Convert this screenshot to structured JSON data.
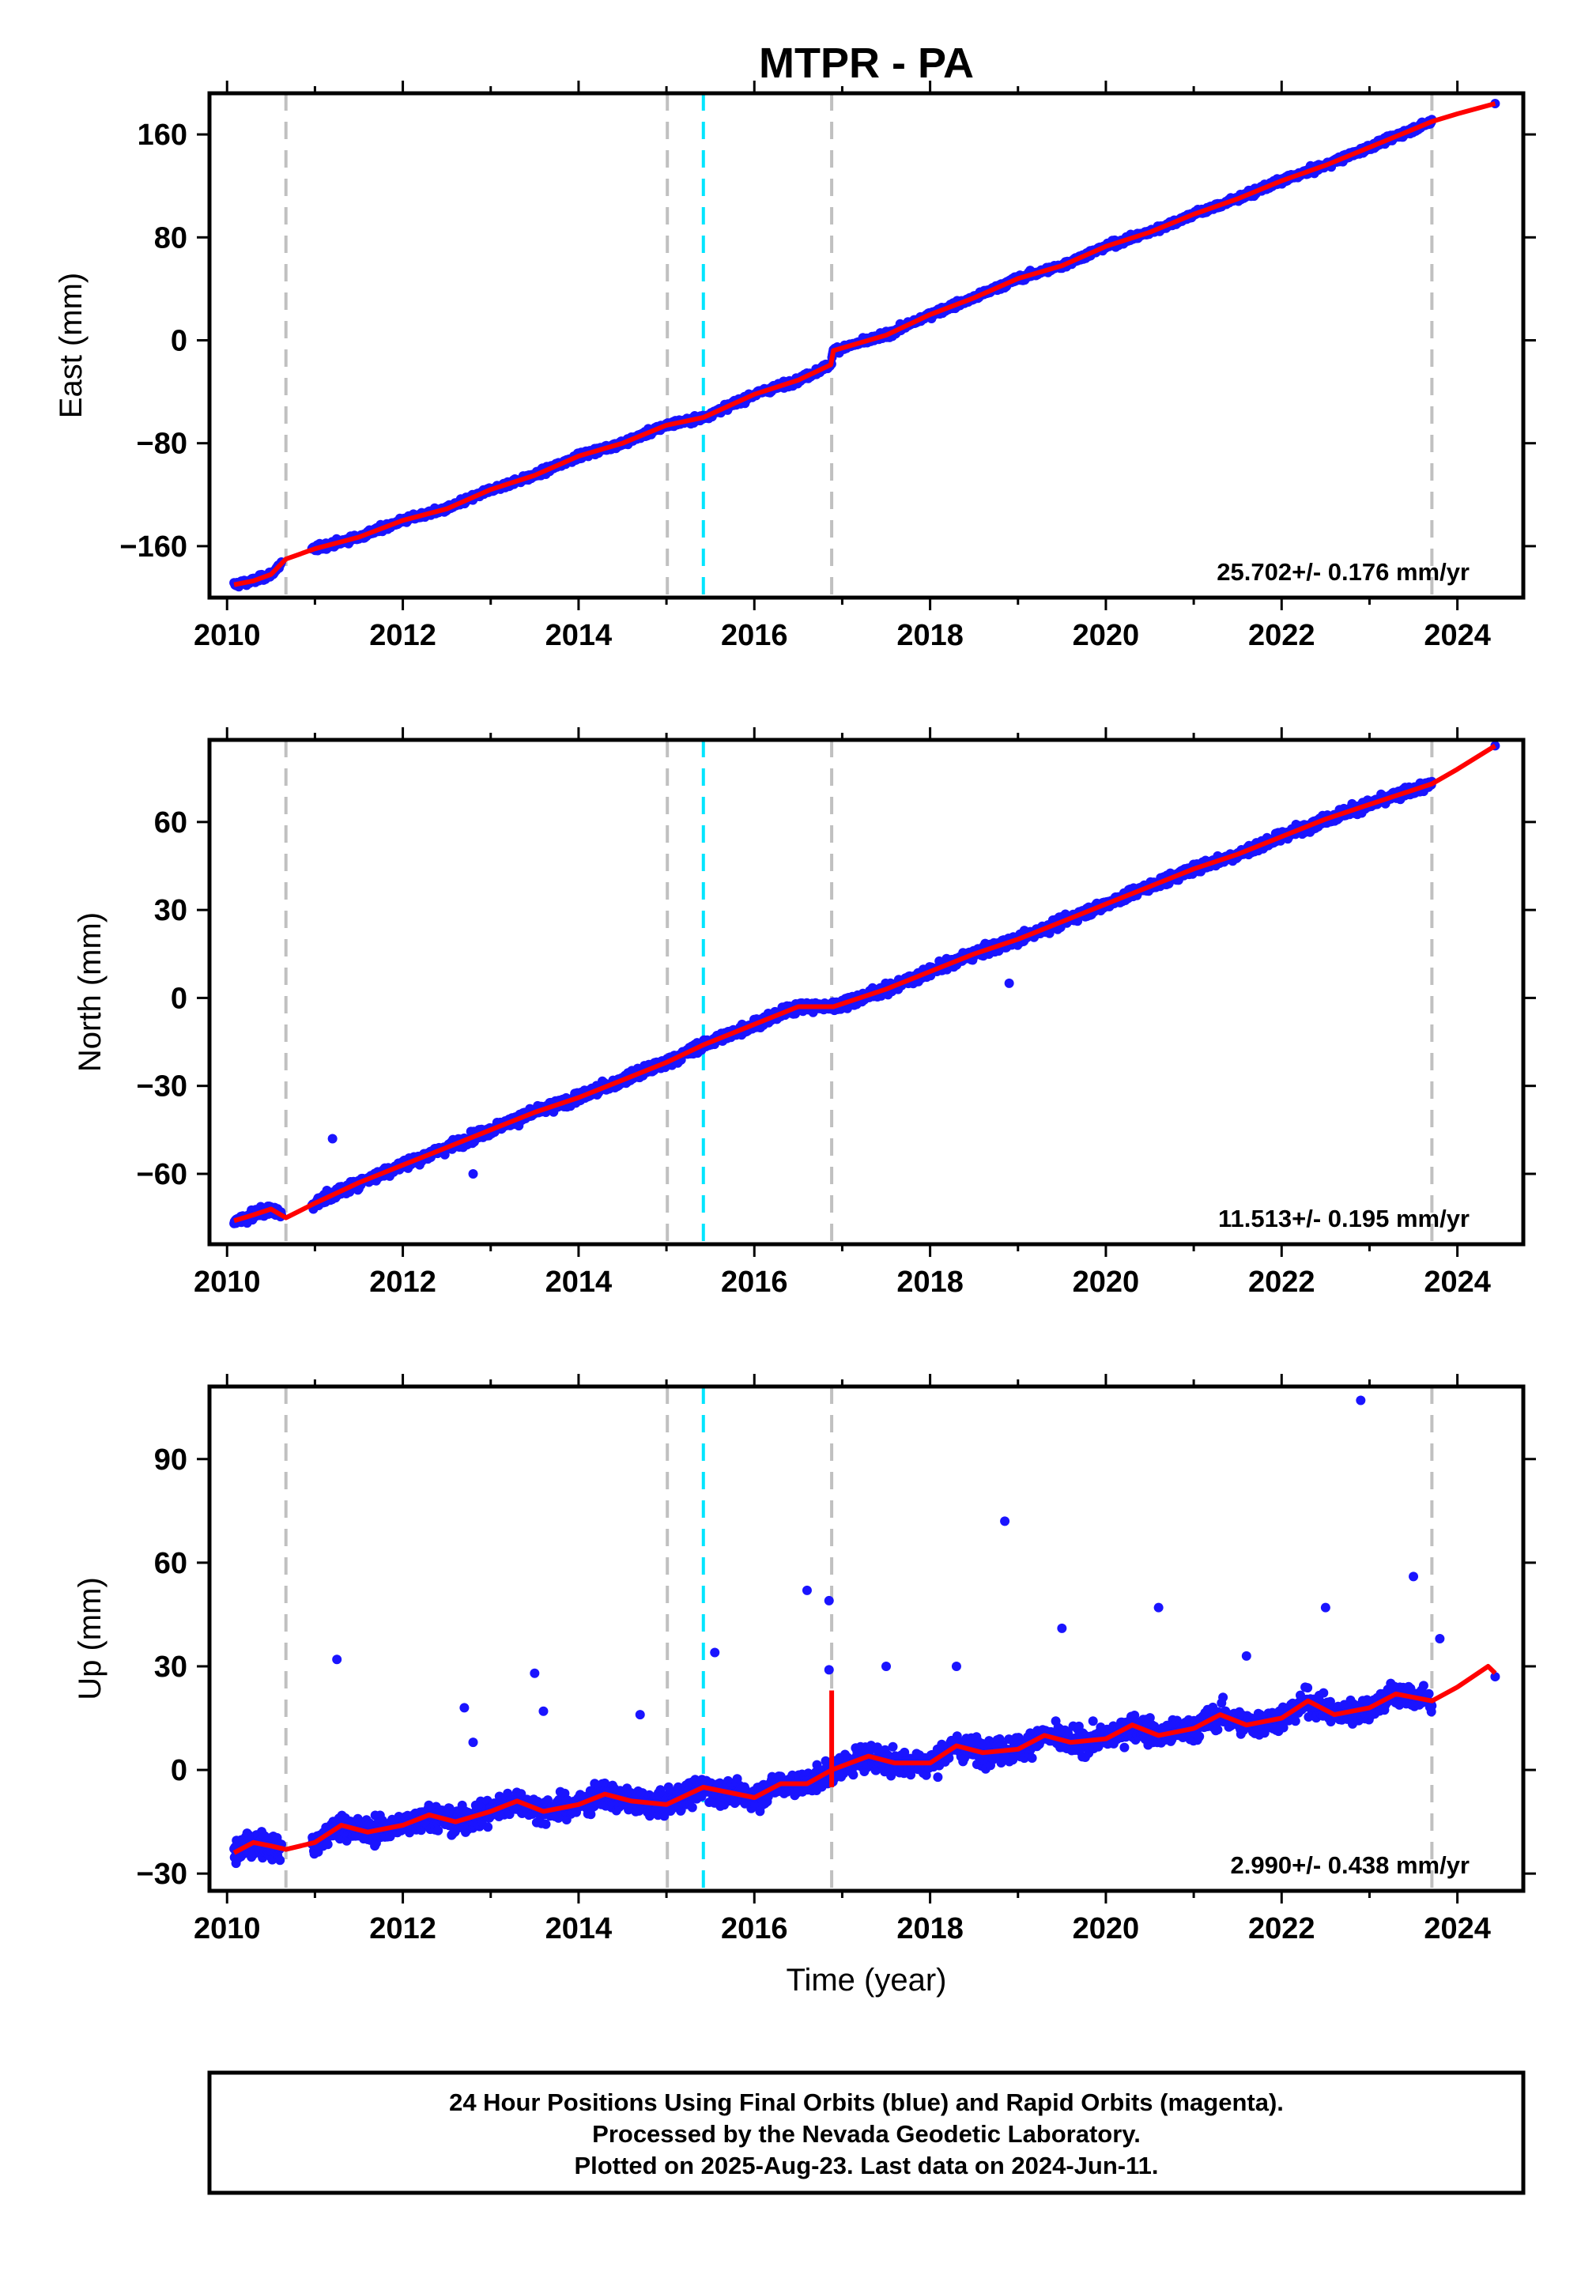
{
  "title": "MTPR - PA",
  "x_label": "Time (year)",
  "colors": {
    "points": "#1a14ff",
    "model": "#ff0000",
    "equipment_change": "#c0c0c0",
    "other_event": "#00e5ff",
    "frame": "#000000"
  },
  "chart_data": [
    {
      "type": "scatter",
      "ylabel": "East (mm)",
      "xlim": [
        2009.8,
        2024.75
      ],
      "ylim": [
        -200,
        192
      ],
      "xticks": [
        2010,
        2012,
        2014,
        2016,
        2018,
        2020,
        2022,
        2024
      ],
      "yticks": [
        -160,
        -80,
        0,
        80,
        160
      ],
      "x_tick_labels": [
        "2010",
        "2012",
        "2014",
        "2016",
        "2018",
        "2020",
        "2022",
        "2024"
      ],
      "y_tick_labels": [
        "-160",
        "-80",
        "0",
        "80",
        "160"
      ],
      "rate": "25.702+/- 0.176 mm/yr",
      "equipment_change_lines": [
        2010.67,
        2015.01,
        2016.88,
        2023.71
      ],
      "other_event_lines": [
        2015.42
      ],
      "data_range": [
        2010.08,
        2023.71
      ],
      "extra_points": [
        [
          2024.43,
          184
        ]
      ],
      "model": [
        [
          2010.08,
          -190
        ],
        [
          2010.3,
          -187
        ],
        [
          2010.5,
          -182
        ],
        [
          2010.67,
          -170
        ],
        [
          2011.0,
          -162
        ],
        [
          2011.5,
          -153
        ],
        [
          2012.0,
          -140
        ],
        [
          2012.5,
          -131
        ],
        [
          2013.0,
          -116
        ],
        [
          2013.5,
          -105
        ],
        [
          2014.0,
          -90
        ],
        [
          2014.5,
          -80
        ],
        [
          2015.0,
          -66
        ],
        [
          2015.42,
          -60
        ],
        [
          2016.0,
          -42
        ],
        [
          2016.5,
          -31
        ],
        [
          2016.87,
          -19
        ],
        [
          2016.9,
          -8
        ],
        [
          2017.5,
          4
        ],
        [
          2018.0,
          20
        ],
        [
          2018.5,
          33
        ],
        [
          2019.0,
          48
        ],
        [
          2019.5,
          58
        ],
        [
          2020.0,
          73
        ],
        [
          2020.5,
          84
        ],
        [
          2021.0,
          98
        ],
        [
          2021.5,
          110
        ],
        [
          2022.0,
          124
        ],
        [
          2022.5,
          136
        ],
        [
          2023.0,
          150
        ],
        [
          2023.71,
          170
        ],
        [
          2024.0,
          176
        ],
        [
          2024.43,
          184
        ]
      ],
      "noise": 3.0,
      "outliers": []
    },
    {
      "type": "scatter",
      "ylabel": "North (mm)",
      "xlim": [
        2009.8,
        2024.75
      ],
      "ylim": [
        -84,
        88
      ],
      "xticks": [
        2010,
        2012,
        2014,
        2016,
        2018,
        2020,
        2022,
        2024
      ],
      "yticks": [
        -60,
        -30,
        0,
        30,
        60
      ],
      "x_tick_labels": [
        "2010",
        "2012",
        "2014",
        "2016",
        "2018",
        "2020",
        "2022",
        "2024"
      ],
      "y_tick_labels": [
        "-60",
        "-30",
        "0",
        "30",
        "60"
      ],
      "rate": "11.513+/- 0.195 mm/yr",
      "equipment_change_lines": [
        2010.67,
        2015.01,
        2016.88,
        2023.71
      ],
      "other_event_lines": [
        2015.42
      ],
      "data_range": [
        2010.08,
        2023.71
      ],
      "extra_points": [
        [
          2024.43,
          86
        ]
      ],
      "model": [
        [
          2010.08,
          -76
        ],
        [
          2010.3,
          -74
        ],
        [
          2010.5,
          -72
        ],
        [
          2010.67,
          -75
        ],
        [
          2011.0,
          -70
        ],
        [
          2011.5,
          -63
        ],
        [
          2012.0,
          -57
        ],
        [
          2012.5,
          -51
        ],
        [
          2013.0,
          -45
        ],
        [
          2013.5,
          -39
        ],
        [
          2014.0,
          -34
        ],
        [
          2014.5,
          -28
        ],
        [
          2015.0,
          -22
        ],
        [
          2015.42,
          -16
        ],
        [
          2016.0,
          -9
        ],
        [
          2016.5,
          -3
        ],
        [
          2016.9,
          -3
        ],
        [
          2017.5,
          3
        ],
        [
          2018.0,
          9
        ],
        [
          2018.5,
          15
        ],
        [
          2019.0,
          20
        ],
        [
          2019.5,
          26
        ],
        [
          2020.0,
          32
        ],
        [
          2020.5,
          38
        ],
        [
          2021.0,
          44
        ],
        [
          2021.5,
          49
        ],
        [
          2022.0,
          55
        ],
        [
          2022.5,
          61
        ],
        [
          2023.0,
          66
        ],
        [
          2023.71,
          73
        ],
        [
          2024.0,
          78
        ],
        [
          2024.43,
          86
        ]
      ],
      "noise": 2.2,
      "outliers": [
        [
          2011.2,
          -48
        ],
        [
          2012.8,
          -60
        ],
        [
          2018.9,
          5
        ]
      ]
    },
    {
      "type": "scatter",
      "ylabel": "Up (mm)",
      "xlim": [
        2009.8,
        2024.75
      ],
      "ylim": [
        -35,
        111
      ],
      "xticks": [
        2010,
        2012,
        2014,
        2016,
        2018,
        2020,
        2022,
        2024
      ],
      "yticks": [
        -30,
        0,
        30,
        60,
        90
      ],
      "x_tick_labels": [
        "2010",
        "2012",
        "2014",
        "2016",
        "2018",
        "2020",
        "2022",
        "2024"
      ],
      "y_tick_labels": [
        "-30",
        "0",
        "30",
        "60",
        "90"
      ],
      "rate": "2.990+/- 0.438 mm/yr",
      "equipment_change_lines": [
        2010.67,
        2015.01,
        2016.88,
        2023.71
      ],
      "other_event_lines": [
        2015.42
      ],
      "data_range": [
        2010.08,
        2023.71
      ],
      "extra_points": [
        [
          2024.43,
          27
        ]
      ],
      "model": [
        [
          2010.08,
          -24
        ],
        [
          2010.3,
          -21
        ],
        [
          2010.5,
          -22
        ],
        [
          2010.67,
          -23
        ],
        [
          2011.0,
          -21
        ],
        [
          2011.3,
          -16
        ],
        [
          2011.6,
          -18
        ],
        [
          2012.0,
          -16
        ],
        [
          2012.3,
          -13
        ],
        [
          2012.6,
          -15
        ],
        [
          2013.0,
          -12
        ],
        [
          2013.3,
          -9
        ],
        [
          2013.6,
          -12
        ],
        [
          2014.0,
          -10
        ],
        [
          2014.3,
          -7
        ],
        [
          2014.6,
          -9
        ],
        [
          2015.0,
          -10
        ],
        [
          2015.42,
          -5
        ],
        [
          2016.0,
          -8
        ],
        [
          2016.3,
          -4
        ],
        [
          2016.6,
          -4
        ],
        [
          2016.88,
          0
        ],
        [
          2017.3,
          4
        ],
        [
          2017.6,
          2
        ],
        [
          2018.0,
          2
        ],
        [
          2018.3,
          7
        ],
        [
          2018.6,
          5
        ],
        [
          2019.0,
          6
        ],
        [
          2019.3,
          10
        ],
        [
          2019.6,
          8
        ],
        [
          2020.0,
          9
        ],
        [
          2020.3,
          13
        ],
        [
          2020.6,
          10
        ],
        [
          2021.0,
          12
        ],
        [
          2021.3,
          16
        ],
        [
          2021.6,
          13
        ],
        [
          2022.0,
          15
        ],
        [
          2022.3,
          20
        ],
        [
          2022.6,
          16
        ],
        [
          2023.0,
          18
        ],
        [
          2023.3,
          22
        ],
        [
          2023.71,
          20
        ],
        [
          2024.0,
          24
        ],
        [
          2024.35,
          30
        ],
        [
          2024.43,
          28
        ]
      ],
      "noise": 4.5,
      "outliers": [
        [
          2011.25,
          32
        ],
        [
          2012.7,
          18
        ],
        [
          2012.8,
          8
        ],
        [
          2013.5,
          28
        ],
        [
          2013.6,
          17
        ],
        [
          2014.7,
          16
        ],
        [
          2015.55,
          34
        ],
        [
          2016.6,
          52
        ],
        [
          2016.85,
          49
        ],
        [
          2016.85,
          29
        ],
        [
          2017.5,
          30
        ],
        [
          2018.3,
          30
        ],
        [
          2018.85,
          72
        ],
        [
          2019.5,
          41
        ],
        [
          2020.6,
          47
        ],
        [
          2021.6,
          33
        ],
        [
          2022.5,
          47
        ],
        [
          2022.9,
          107
        ],
        [
          2023.5,
          56
        ],
        [
          2023.8,
          38
        ]
      ],
      "step_segment": [
        2016.88,
        -5,
        23
      ]
    }
  ],
  "footer": {
    "line1": "24 Hour Positions Using Final Orbits (blue) and Rapid Orbits (magenta).",
    "line2": "Processed by the Nevada Geodetic Laboratory.",
    "line3": "Plotted on 2025-Aug-23. Last data on 2024-Jun-11."
  }
}
